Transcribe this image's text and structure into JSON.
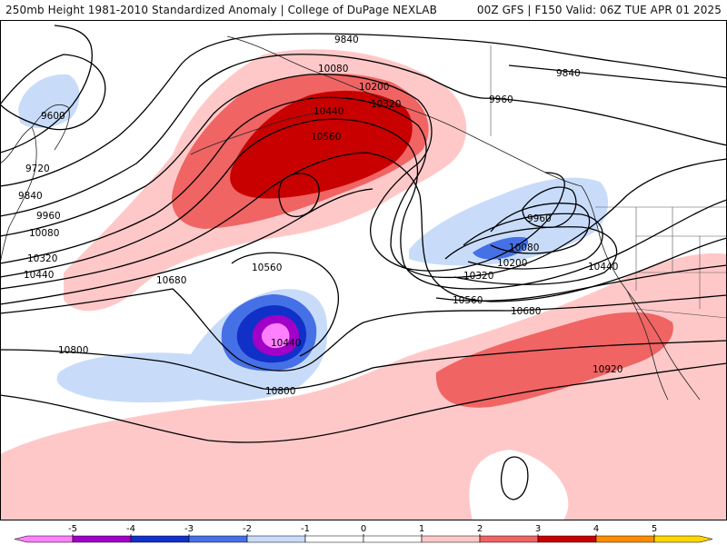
{
  "header": {
    "left_title": "250mb Height 1981-2010 Standardized Anomaly | College of DuPage NEXLAB",
    "right_title": "00Z GFS | F150 Valid: 06Z TUE APR 01 2025"
  },
  "map": {
    "contour_unit": "dam",
    "height_contours": [
      {
        "value": "9600"
      },
      {
        "value": "9720"
      },
      {
        "value": "9840"
      },
      {
        "value": "9840"
      },
      {
        "value": "9840"
      },
      {
        "value": "9960"
      },
      {
        "value": "9960"
      },
      {
        "value": "9960"
      },
      {
        "value": "10080"
      },
      {
        "value": "10080"
      },
      {
        "value": "10080"
      },
      {
        "value": "10200"
      },
      {
        "value": "10200"
      },
      {
        "value": "10320"
      },
      {
        "value": "10320"
      },
      {
        "value": "10320"
      },
      {
        "value": "10440"
      },
      {
        "value": "10440"
      },
      {
        "value": "10440"
      },
      {
        "value": "10440"
      },
      {
        "value": "10560"
      },
      {
        "value": "10560"
      },
      {
        "value": "10560"
      },
      {
        "value": "10680"
      },
      {
        "value": "10680"
      },
      {
        "value": "10800"
      },
      {
        "value": "10800"
      },
      {
        "value": "10920"
      }
    ]
  },
  "colorbar": {
    "ticks": [
      "-5",
      "-4",
      "-3",
      "-2",
      "-1",
      "0",
      "1",
      "2",
      "3",
      "4",
      "5"
    ],
    "colors": [
      "#ff80ff",
      "#a000c8",
      "#1030c8",
      "#4670e6",
      "#c8dcfa",
      "#ffffff",
      "#ffffff",
      "#ffc8c8",
      "#f06464",
      "#c80000",
      "#ff8c00",
      "#ffd700"
    ]
  }
}
